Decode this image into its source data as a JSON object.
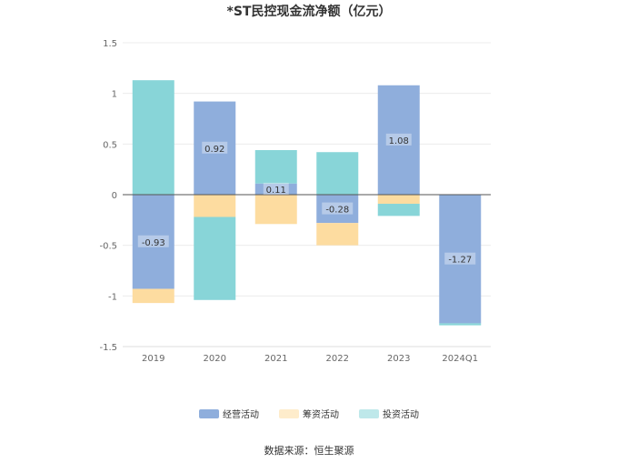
{
  "chart_data": {
    "type": "bar",
    "stacked": true,
    "title": "*ST民控现金流净额（亿元）",
    "categories": [
      "2019",
      "2020",
      "2021",
      "2022",
      "2023",
      "2024Q1"
    ],
    "series": [
      {
        "name": "经营活动",
        "color": "#8FAEDC",
        "values": [
          -0.93,
          0.92,
          0.11,
          -0.28,
          1.08,
          -1.27
        ],
        "labels": [
          "-0.93",
          "0.92",
          "0.11",
          "-0.28",
          "1.08",
          "-1.27"
        ]
      },
      {
        "name": "筹资活动",
        "color": "#FDDCA0",
        "values": [
          -0.14,
          -0.22,
          -0.29,
          -0.22,
          -0.09,
          0.0
        ]
      },
      {
        "name": "投资活动",
        "color": "#88D5D8",
        "values": [
          1.13,
          -0.82,
          0.33,
          0.42,
          -0.12,
          -0.02
        ]
      }
    ],
    "yticks": [
      1.5,
      1,
      0.5,
      0,
      -0.5,
      -1,
      -1.5
    ],
    "ytick_labels": [
      "1.5",
      "1",
      "0.5",
      "0",
      "-0.5",
      "-1",
      "-1.5"
    ],
    "ylim": [
      -1.5,
      1.5
    ],
    "grid": true,
    "legend_position": "bottom"
  },
  "source": "数据来源：恒生聚源"
}
